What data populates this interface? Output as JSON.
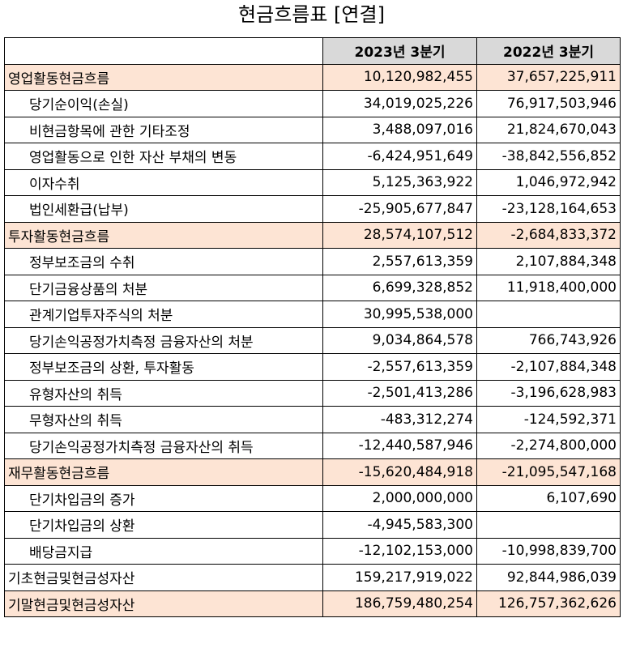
{
  "title": "현금흐름표 [연결]",
  "header": {
    "col0": "",
    "col1": "2023년 3분기",
    "col2": "2022년 3분기"
  },
  "rows": [
    {
      "label": "영업활동현금흐름",
      "v1": "10,120,982,455",
      "v2": "37,657,225,911",
      "section": true
    },
    {
      "label": "당기순이익(손실)",
      "v1": "34,019,025,226",
      "v2": "76,917,503,946",
      "section": false
    },
    {
      "label": "비현금항목에 관한 기타조정",
      "v1": "3,488,097,016",
      "v2": "21,824,670,043",
      "section": false
    },
    {
      "label": "영업활동으로 인한 자산 부채의 변동",
      "v1": "-6,424,951,649",
      "v2": "-38,842,556,852",
      "section": false
    },
    {
      "label": "이자수취",
      "v1": "5,125,363,922",
      "v2": "1,046,972,942",
      "section": false
    },
    {
      "label": "법인세환급(납부)",
      "v1": "-25,905,677,847",
      "v2": "-23,128,164,653",
      "section": false
    },
    {
      "label": "투자활동현금흐름",
      "v1": "28,574,107,512",
      "v2": "-2,684,833,372",
      "section": true
    },
    {
      "label": "정부보조금의 수취",
      "v1": "2,557,613,359",
      "v2": "2,107,884,348",
      "section": false
    },
    {
      "label": "단기금융상품의 처분",
      "v1": "6,699,328,852",
      "v2": "11,918,400,000",
      "section": false
    },
    {
      "label": "관계기업투자주식의 처분",
      "v1": "30,995,538,000",
      "v2": "",
      "section": false
    },
    {
      "label": "당기손익공정가치측정 금융자산의 처분",
      "v1": "9,034,864,578",
      "v2": "766,743,926",
      "section": false
    },
    {
      "label": "정부보조금의 상환, 투자활동",
      "v1": "-2,557,613,359",
      "v2": "-2,107,884,348",
      "section": false
    },
    {
      "label": "유형자산의 취득",
      "v1": "-2,501,413,286",
      "v2": "-3,196,628,983",
      "section": false
    },
    {
      "label": "무형자산의 취득",
      "v1": "-483,312,274",
      "v2": "-124,592,371",
      "section": false
    },
    {
      "label": "당기손익공정가치측정 금융자산의 취득",
      "v1": "-12,440,587,946",
      "v2": "-2,274,800,000",
      "section": false
    },
    {
      "label": "재무활동현금흐름",
      "v1": "-15,620,484,918",
      "v2": "-21,095,547,168",
      "section": true
    },
    {
      "label": "단기차입금의 증가",
      "v1": "2,000,000,000",
      "v2": "6,107,690",
      "section": false
    },
    {
      "label": "단기차입금의 상환",
      "v1": "-4,945,583,300",
      "v2": "",
      "section": false
    },
    {
      "label": "배당금지급",
      "v1": "-12,102,153,000",
      "v2": "-10,998,839,700",
      "section": false
    },
    {
      "label": "기초현금및현금성자산",
      "v1": "159,217,919,022",
      "v2": "92,844,986,039",
      "section": false,
      "top": true
    },
    {
      "label": "기말현금및현금성자산",
      "v1": "186,759,480,254",
      "v2": "126,757,362,626",
      "section": true
    }
  ]
}
